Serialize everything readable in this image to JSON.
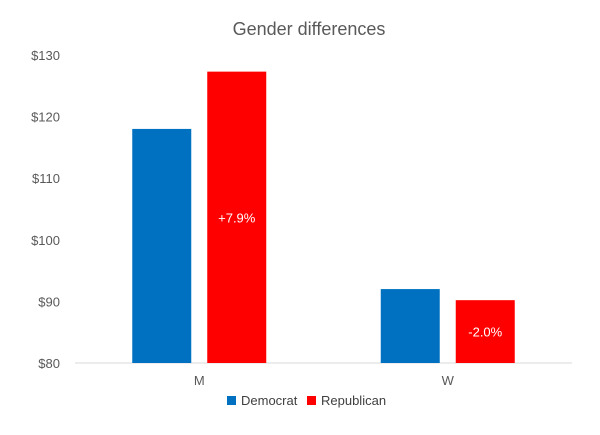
{
  "chart_data": {
    "type": "bar",
    "title": "Gender differences",
    "categories": [
      "M",
      "W"
    ],
    "series": [
      {
        "name": "Democrat",
        "color": "#0070C0",
        "values": [
          118,
          92
        ]
      },
      {
        "name": "Republican",
        "color": "#FF0000",
        "values": [
          127.3,
          90.2
        ]
      }
    ],
    "data_labels": [
      "+7.9%",
      "-2.0%"
    ],
    "ylim": [
      80,
      130
    ],
    "yticks": [
      {
        "value": 80,
        "label": "$80"
      },
      {
        "value": 90,
        "label": "$90"
      },
      {
        "value": 100,
        "label": "$100"
      },
      {
        "value": 110,
        "label": "$110"
      },
      {
        "value": 120,
        "label": "$120"
      },
      {
        "value": 130,
        "label": "$130"
      }
    ],
    "grid": false,
    "legend": "bottom",
    "xlabel": "",
    "ylabel": ""
  }
}
